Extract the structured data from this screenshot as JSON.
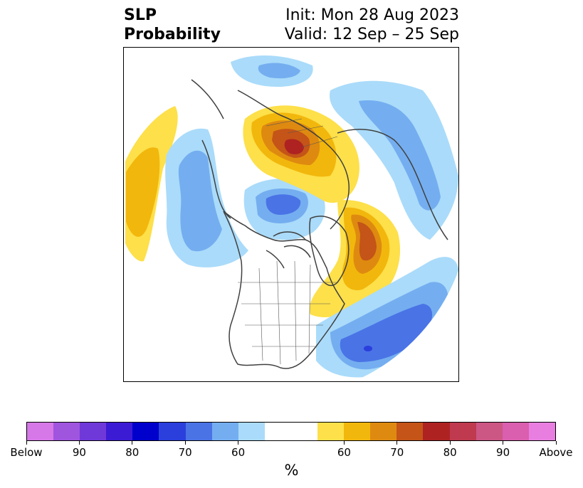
{
  "title": {
    "left_line1": "SLP",
    "left_line2": "Probability",
    "right_line1": "Init: Mon 28 Aug 2023",
    "right_line2": "Valid: 12 Sep – 25 Sep"
  },
  "colorbar": {
    "unit": "%",
    "colors": [
      "#d778e8",
      "#a055df",
      "#6f38d9",
      "#3c1bd5",
      "#0000cc",
      "#2a3fdc",
      "#4a73e6",
      "#74aef0",
      "#aadbfa",
      "#ffffff",
      "#ffffff",
      "#fde04a",
      "#f2b70c",
      "#de8a10",
      "#c45418",
      "#ae2222",
      "#bf3a4e",
      "#cc5684",
      "#da5fae",
      "#e87fe0"
    ],
    "ticks": [
      {
        "label": "Below",
        "index": 0
      },
      {
        "label": "90",
        "index": 2
      },
      {
        "label": "80",
        "index": 4
      },
      {
        "label": "70",
        "index": 6
      },
      {
        "label": "60",
        "index": 8
      },
      {
        "label": "60",
        "index": 12
      },
      {
        "label": "70",
        "index": 14
      },
      {
        "label": "80",
        "index": 16
      },
      {
        "label": "90",
        "index": 18
      },
      {
        "label": "Above",
        "index": 20
      }
    ]
  },
  "map": {
    "projection": "north-polar-stereographic",
    "domain": "Northern Hemisphere",
    "field_colors": {
      "above_60": "#fde04a",
      "above_65": "#f2b70c",
      "above_70": "#de8a10",
      "above_75": "#c45418",
      "above_80": "#ae2222",
      "below_60": "#aadbfa",
      "below_65": "#74aef0",
      "below_70": "#4a73e6",
      "below_75": "#2a3fdc"
    }
  }
}
